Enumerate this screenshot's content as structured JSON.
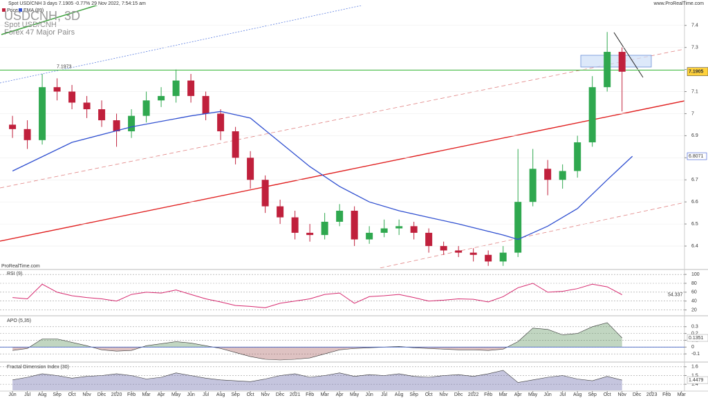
{
  "chart_data": [
    {
      "type": "candlestick",
      "header": "Spot USD/CNH 3 days 7.1905 -0.77% 29 Nov 2022, 7:54:15 am",
      "site": "www.ProRealTime.com",
      "title": "USDCNH, 3D",
      "subtitle": "Spot USD/CNH",
      "group": "Forex 47 Major Pairs",
      "watermark": "ProRealTime.com",
      "xlim": [
        -0.84,
        45.2
      ],
      "ylim": [
        6.3,
        7.49
      ],
      "yticks": [
        6.4,
        6.5,
        6.6,
        6.7,
        6.8,
        6.9,
        7,
        7.1,
        7.2,
        7.3,
        7.4
      ],
      "last_price": 7.1905,
      "hline": 7.1973,
      "candles": {
        "name": "Price",
        "up_color": "#2fa84f",
        "down_color": "#c0203c",
        "x": [
          0,
          1,
          2,
          3,
          4,
          5,
          6,
          7,
          8,
          9,
          10,
          11,
          12,
          13,
          14,
          15,
          16,
          17,
          18,
          19,
          20,
          21,
          22,
          23,
          24,
          25,
          26,
          27,
          28,
          29,
          30,
          31,
          32,
          33,
          34,
          35,
          36,
          37,
          38,
          39,
          40,
          41
        ],
        "open": [
          6.95,
          6.93,
          6.88,
          7.12,
          7.1,
          7.05,
          7.02,
          6.97,
          6.92,
          6.99,
          7.06,
          7.08,
          7.15,
          7.08,
          7.0,
          6.92,
          6.8,
          6.7,
          6.58,
          6.53,
          6.46,
          6.45,
          6.51,
          6.56,
          6.43,
          6.46,
          6.48,
          6.49,
          6.46,
          6.4,
          6.38,
          6.37,
          6.36,
          6.33,
          6.37,
          6.6,
          6.75,
          6.7,
          6.74,
          6.87,
          7.12,
          7.28
        ],
        "high": [
          6.99,
          6.97,
          7.18,
          7.16,
          7.13,
          7.08,
          7.06,
          7.0,
          7.02,
          7.1,
          7.12,
          7.2,
          7.18,
          7.1,
          7.02,
          6.94,
          6.83,
          6.72,
          6.61,
          6.56,
          6.5,
          6.55,
          6.59,
          6.58,
          6.49,
          6.52,
          6.52,
          6.51,
          6.48,
          6.42,
          6.4,
          6.39,
          6.38,
          6.4,
          6.84,
          6.84,
          6.79,
          6.77,
          6.9,
          7.17,
          7.37,
          7.3
        ],
        "low": [
          6.89,
          6.84,
          6.86,
          7.06,
          7.02,
          6.98,
          6.94,
          6.85,
          6.89,
          6.96,
          7.03,
          7.05,
          7.05,
          6.97,
          6.88,
          6.77,
          6.66,
          6.55,
          6.5,
          6.43,
          6.42,
          6.43,
          6.49,
          6.4,
          6.41,
          6.44,
          6.45,
          6.43,
          6.37,
          6.36,
          6.35,
          6.33,
          6.31,
          6.31,
          6.35,
          6.58,
          6.63,
          6.66,
          6.71,
          6.85,
          7.1,
          7.01
        ],
        "close": [
          6.93,
          6.88,
          7.12,
          7.1,
          7.05,
          7.02,
          6.97,
          6.92,
          6.99,
          7.06,
          7.08,
          7.15,
          7.08,
          7.0,
          6.92,
          6.8,
          6.7,
          6.58,
          6.53,
          6.46,
          6.45,
          6.51,
          6.56,
          6.43,
          6.46,
          6.48,
          6.49,
          6.46,
          6.4,
          6.38,
          6.37,
          6.36,
          6.33,
          6.37,
          6.6,
          6.75,
          6.7,
          6.74,
          6.87,
          7.12,
          7.28,
          7.19
        ]
      },
      "series": [
        {
          "name": "EMA (89)",
          "color": "#2f4fd0",
          "x": [
            0,
            4,
            8,
            12,
            14,
            16,
            18,
            20,
            22,
            24,
            26,
            28,
            30,
            33,
            34,
            36,
            38,
            40,
            41.7
          ],
          "values": [
            6.74,
            6.87,
            6.94,
            6.99,
            7.01,
            6.98,
            6.87,
            6.76,
            6.67,
            6.6,
            6.56,
            6.53,
            6.5,
            6.45,
            6.43,
            6.49,
            6.57,
            6.7,
            6.8071
          ],
          "last_label": 6.8071
        }
      ]
    },
    {
      "type": "line",
      "title": "RSI (9)",
      "xlim": [
        -0.84,
        45.2
      ],
      "ylim": [
        10,
        108
      ],
      "yticks": [
        20,
        40,
        60,
        80,
        100
      ],
      "x": [
        0,
        1,
        2,
        3,
        4,
        5,
        6,
        7,
        8,
        9,
        10,
        11,
        12,
        13,
        14,
        15,
        16,
        17,
        18,
        19,
        20,
        21,
        22,
        23,
        24,
        25,
        26,
        27,
        28,
        29,
        30,
        31,
        32,
        33,
        34,
        35,
        36,
        37,
        38,
        39,
        40,
        41
      ],
      "series": [
        {
          "color": "#d6286e",
          "values": [
            48,
            45,
            78,
            60,
            52,
            48,
            45,
            40,
            55,
            60,
            58,
            65,
            55,
            45,
            38,
            30,
            28,
            25,
            35,
            40,
            45,
            55,
            58,
            35,
            50,
            52,
            55,
            48,
            40,
            42,
            45,
            44,
            38,
            50,
            70,
            80,
            60,
            62,
            68,
            78,
            72,
            54.337
          ]
        }
      ]
    },
    {
      "type": "area",
      "title": "APO (5,35)",
      "xlim": [
        -0.84,
        45.2
      ],
      "ylim": [
        -0.2,
        0.43
      ],
      "yticks": [
        -0.1,
        0,
        0.1,
        0.2,
        0.3
      ],
      "x": [
        0,
        1,
        2,
        3,
        4,
        5,
        6,
        7,
        8,
        9,
        10,
        11,
        12,
        13,
        14,
        15,
        16,
        17,
        18,
        19,
        20,
        21,
        22,
        23,
        24,
        25,
        26,
        27,
        28,
        29,
        30,
        31,
        32,
        33,
        34,
        35,
        36,
        37,
        38,
        39,
        40,
        41
      ],
      "series": [
        {
          "color": "#4c8a4c",
          "negative_color": "#a05050",
          "values": [
            -0.05,
            -0.02,
            0.12,
            0.12,
            0.07,
            0.02,
            -0.04,
            -0.06,
            -0.05,
            0.02,
            0.05,
            0.08,
            0.06,
            0.02,
            -0.02,
            -0.08,
            -0.14,
            -0.18,
            -0.19,
            -0.18,
            -0.16,
            -0.1,
            -0.04,
            -0.02,
            -0.01,
            0.0,
            0.01,
            -0.01,
            -0.02,
            -0.03,
            -0.04,
            -0.04,
            -0.05,
            -0.03,
            0.08,
            0.28,
            0.26,
            0.18,
            0.2,
            0.3,
            0.36,
            0.1351
          ]
        }
      ]
    },
    {
      "type": "area",
      "title": "Fractal Dimension Index (30)",
      "xlim": [
        -0.84,
        45.2
      ],
      "ylim": [
        1.33,
        1.63
      ],
      "yticks": [
        1.4,
        1.5,
        1.6
      ],
      "x": [
        0,
        1,
        2,
        3,
        4,
        5,
        6,
        7,
        8,
        9,
        10,
        11,
        12,
        13,
        14,
        15,
        16,
        17,
        18,
        19,
        20,
        21,
        22,
        23,
        24,
        25,
        26,
        27,
        28,
        29,
        30,
        31,
        32,
        33,
        34,
        35,
        36,
        37,
        38,
        39,
        40,
        41
      ],
      "series": [
        {
          "color": "#5a5aa0",
          "values": [
            1.45,
            1.48,
            1.52,
            1.5,
            1.47,
            1.49,
            1.5,
            1.52,
            1.5,
            1.46,
            1.48,
            1.53,
            1.5,
            1.47,
            1.45,
            1.44,
            1.43,
            1.46,
            1.5,
            1.52,
            1.48,
            1.5,
            1.53,
            1.49,
            1.51,
            1.5,
            1.52,
            1.49,
            1.48,
            1.5,
            1.51,
            1.49,
            1.52,
            1.56,
            1.42,
            1.45,
            1.48,
            1.5,
            1.46,
            1.44,
            1.49,
            1.4479
          ]
        }
      ],
      "xticks": [
        {
          "value": 0,
          "label": "Jun"
        },
        {
          "value": 1,
          "label": "Jul"
        },
        {
          "value": 2,
          "label": "Aug"
        },
        {
          "value": 3,
          "label": "Sep"
        },
        {
          "value": 4,
          "label": "Oct"
        },
        {
          "value": 5,
          "label": "Nov"
        },
        {
          "value": 6,
          "label": "Dec"
        },
        {
          "value": 7,
          "label": "2020"
        },
        {
          "value": 8,
          "label": "Feb"
        },
        {
          "value": 9,
          "label": "Mar"
        },
        {
          "value": 10,
          "label": "Apr"
        },
        {
          "value": 11,
          "label": "May"
        },
        {
          "value": 12,
          "label": "Jun"
        },
        {
          "value": 13,
          "label": "Jul"
        },
        {
          "value": 14,
          "label": "Aug"
        },
        {
          "value": 15,
          "label": "Sep"
        },
        {
          "value": 16,
          "label": "Oct"
        },
        {
          "value": 17,
          "label": "Nov"
        },
        {
          "value": 18,
          "label": "Dec"
        },
        {
          "value": 19,
          "label": "2021"
        },
        {
          "value": 20,
          "label": "Feb"
        },
        {
          "value": 21,
          "label": "Mar"
        },
        {
          "value": 22,
          "label": "Apr"
        },
        {
          "value": 23,
          "label": "May"
        },
        {
          "value": 24,
          "label": "Jun"
        },
        {
          "value": 25,
          "label": "Jul"
        },
        {
          "value": 26,
          "label": "Aug"
        },
        {
          "value": 27,
          "label": "Sep"
        },
        {
          "value": 28,
          "label": "Oct"
        },
        {
          "value": 29,
          "label": "Nov"
        },
        {
          "value": 30,
          "label": "Dec"
        },
        {
          "value": 31,
          "label": "2022"
        },
        {
          "value": 32,
          "label": "Feb"
        },
        {
          "value": 33,
          "label": "Mar"
        },
        {
          "value": 34,
          "label": "Apr"
        },
        {
          "value": 35,
          "label": "May"
        },
        {
          "value": 36,
          "label": "Jun"
        },
        {
          "value": 37,
          "label": "Jul"
        },
        {
          "value": 38,
          "label": "Aug"
        },
        {
          "value": 39,
          "label": "Sep"
        },
        {
          "value": 40,
          "label": "Oct"
        },
        {
          "value": 41,
          "label": "Nov"
        },
        {
          "value": 42,
          "label": "Dec"
        },
        {
          "value": 43,
          "label": "2023"
        },
        {
          "value": 44,
          "label": "Feb"
        },
        {
          "value": 45,
          "label": "Mar"
        }
      ]
    }
  ]
}
